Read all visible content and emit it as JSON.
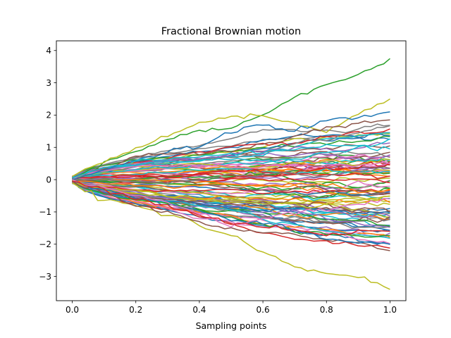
{
  "chart_data": {
    "type": "line",
    "title": "Fractional Brownian motion",
    "xlabel": "Sampling points",
    "ylabel": "",
    "xlim": [
      -0.05,
      1.05
    ],
    "ylim": [
      -3.75,
      4.3
    ],
    "xticks": [
      0.0,
      0.2,
      0.4,
      0.6,
      0.8,
      1.0
    ],
    "xtick_labels": [
      "0.0",
      "0.2",
      "0.4",
      "0.6",
      "0.8",
      "1.0"
    ],
    "yticks": [
      -3,
      -2,
      -1,
      0,
      1,
      2,
      3,
      4
    ],
    "ytick_labels": [
      "−3",
      "−2",
      "−1",
      "0",
      "1",
      "2",
      "3",
      "4"
    ],
    "grid": false,
    "legend": false,
    "n_paths": 100,
    "n_samples": 51,
    "palette": [
      "#1f77b4",
      "#ff7f0e",
      "#2ca02c",
      "#d62728",
      "#9467bd",
      "#8c564b",
      "#e377c2",
      "#7f7f7f",
      "#bcbd22",
      "#17becf"
    ],
    "series": [
      {
        "color": "#2ca02c",
        "x": [
          0,
          0.1,
          0.2,
          0.3,
          0.4,
          0.5,
          0.6,
          0.7,
          0.8,
          0.9,
          1.0
        ],
        "values": [
          0.05,
          0.5,
          0.85,
          1.25,
          1.5,
          1.6,
          2.0,
          2.55,
          2.95,
          3.25,
          3.75
        ]
      },
      {
        "color": "#bcbd22",
        "x": [
          0,
          0.1,
          0.2,
          0.3,
          0.4,
          0.5,
          0.6,
          0.7,
          0.8,
          0.9,
          1.0
        ],
        "values": [
          0.1,
          0.55,
          0.95,
          1.35,
          1.75,
          1.95,
          2.0,
          1.75,
          1.5,
          2.0,
          2.5
        ]
      },
      {
        "color": "#1f77b4",
        "x": [
          0,
          0.1,
          0.2,
          0.3,
          0.4,
          0.5,
          0.6,
          0.7,
          0.8,
          0.9,
          1.0
        ],
        "values": [
          0.0,
          0.3,
          0.6,
          0.85,
          1.05,
          1.5,
          1.7,
          1.5,
          1.85,
          1.95,
          2.1
        ]
      },
      {
        "color": "#8c564b",
        "x": [
          0,
          0.1,
          0.2,
          0.3,
          0.4,
          0.5,
          0.6,
          0.7,
          0.8,
          0.9,
          1.0
        ],
        "values": [
          0.05,
          0.35,
          0.7,
          0.8,
          0.85,
          0.9,
          1.1,
          1.35,
          1.6,
          1.75,
          1.85
        ]
      },
      {
        "color": "#bcbd22",
        "x": [
          0,
          0.1,
          0.2,
          0.3,
          0.4,
          0.5,
          0.6,
          0.7,
          0.8,
          0.9,
          1.0
        ],
        "values": [
          -0.1,
          -0.65,
          -0.85,
          -1.05,
          -1.4,
          -1.75,
          -2.2,
          -2.7,
          -2.9,
          -3.05,
          -3.4
        ]
      },
      {
        "color": "#8c564b",
        "x": [
          0,
          0.1,
          0.2,
          0.3,
          0.4,
          0.5,
          0.6,
          0.7,
          0.8,
          0.9,
          1.0
        ],
        "values": [
          -0.05,
          -0.45,
          -0.8,
          -1.0,
          -1.35,
          -1.55,
          -1.6,
          -1.75,
          -1.85,
          -1.95,
          -2.2
        ]
      },
      {
        "color": "#1f77b4",
        "x": [
          0,
          0.1,
          0.2,
          0.3,
          0.4,
          0.5,
          0.6,
          0.7,
          0.8,
          0.9,
          1.0
        ],
        "values": [
          -0.05,
          -0.3,
          -0.55,
          -0.8,
          -0.95,
          -1.25,
          -1.35,
          -1.55,
          -1.8,
          -1.95,
          -2.0
        ]
      },
      {
        "color": "#e377c2",
        "x": [
          0,
          0.1,
          0.2,
          0.3,
          0.4,
          0.5,
          0.6,
          0.7,
          0.8,
          0.9,
          1.0
        ],
        "values": [
          0.0,
          -0.25,
          -0.5,
          -0.7,
          -1.05,
          -1.45,
          -1.2,
          -1.0,
          -0.9,
          -0.75,
          -0.6
        ]
      },
      {
        "color": "#17becf",
        "x": [
          0,
          0.1,
          0.2,
          0.3,
          0.4,
          0.5,
          0.6,
          0.7,
          0.8,
          0.9,
          1.0
        ],
        "values": [
          0.05,
          0.35,
          0.55,
          0.65,
          0.7,
          0.8,
          0.85,
          0.95,
          1.05,
          1.0,
          0.95
        ]
      },
      {
        "color": "#d62728",
        "x": [
          0,
          0.1,
          0.2,
          0.3,
          0.4,
          0.5,
          0.6,
          0.7,
          0.8,
          0.9,
          1.0
        ],
        "values": [
          -0.05,
          -0.3,
          -0.6,
          -0.85,
          -1.1,
          -1.35,
          -1.45,
          -1.55,
          -1.7,
          -1.6,
          -1.6
        ]
      }
    ],
    "background_paths": {
      "count": 90,
      "range": [
        -1.6,
        1.6
      ],
      "note_only_for_rendering": false
    }
  }
}
